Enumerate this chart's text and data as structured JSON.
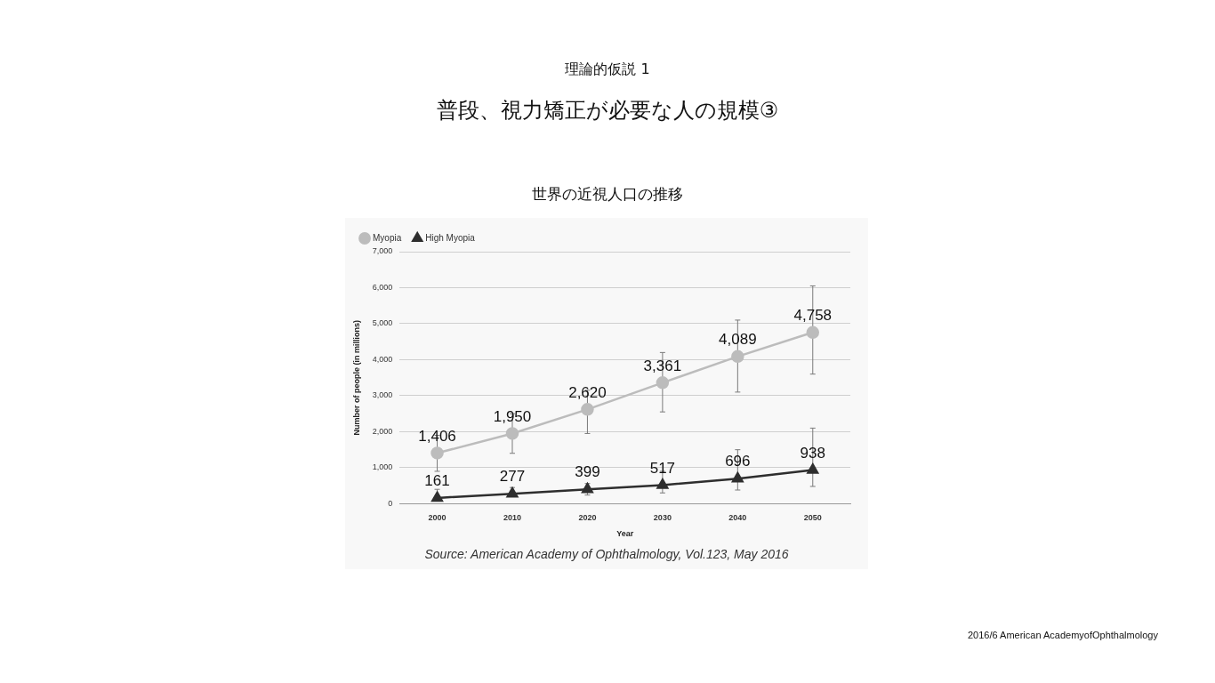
{
  "chart_data": {
    "type": "line",
    "title": "普段、視力矯正が必要な人の規模③",
    "subtitle": "世界の近視人口の推移",
    "xlabel": "Year",
    "ylabel": "Number of people (in millions)",
    "categories": [
      "2000",
      "2010",
      "2020",
      "2030",
      "2040",
      "2050"
    ],
    "series": [
      {
        "name": "Myopia",
        "color": "#bcbcbc",
        "marker": "circle",
        "values": [
          1406,
          1950,
          2620,
          3361,
          4089,
          4758
        ],
        "value_labels": [
          "1,406",
          "1,950",
          "2,620",
          "3,361",
          "4,089",
          "4,758"
        ],
        "errors": [
          [
            900,
            1900
          ],
          [
            1400,
            2500
          ],
          [
            1950,
            3150
          ],
          [
            2550,
            4200
          ],
          [
            3100,
            5100
          ],
          [
            3600,
            6050
          ]
        ]
      },
      {
        "name": "High Myopia",
        "color": "#2e2e2e",
        "marker": "triangle",
        "values": [
          161,
          277,
          399,
          517,
          696,
          938
        ],
        "value_labels": [
          "161",
          "277",
          "399",
          "517",
          "696",
          "938"
        ],
        "errors": [
          [
            100,
            400
          ],
          [
            200,
            450
          ],
          [
            240,
            560
          ],
          [
            300,
            900
          ],
          [
            380,
            1500
          ],
          [
            480,
            2100
          ]
        ]
      }
    ],
    "ylim": [
      0,
      7000
    ],
    "yticks": [
      {
        "value": 0,
        "label": "0"
      },
      {
        "value": 1000,
        "label": "1,000"
      },
      {
        "value": 2000,
        "label": "2,000"
      },
      {
        "value": 3000,
        "label": "3,000"
      },
      {
        "value": 4000,
        "label": "4,000"
      },
      {
        "value": 5000,
        "label": "5,000"
      },
      {
        "value": 6000,
        "label": "6,000"
      },
      {
        "value": 7000,
        "label": "7,000"
      }
    ],
    "grid": "y",
    "legend": "top left",
    "line_style": "solid",
    "annotations": [
      "理論的仮説 1",
      "Source: American Academy of Ophthalmology, Vol.123, May 2016",
      "2016/6 American AcademyofOphthalmology"
    ]
  }
}
